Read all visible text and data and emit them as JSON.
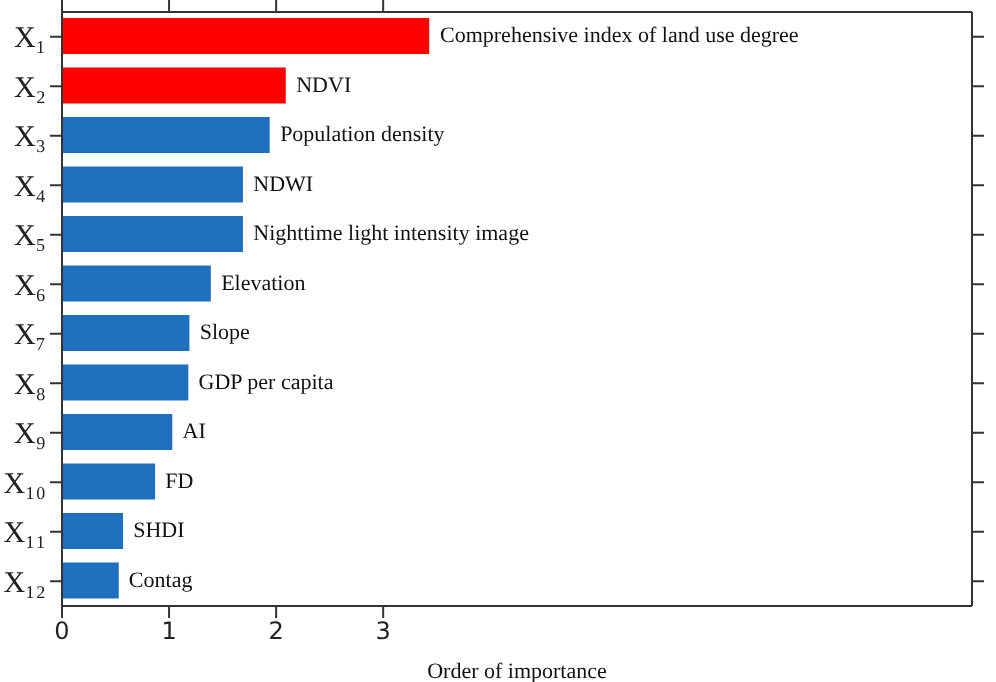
{
  "chart_data": {
    "type": "bar",
    "orientation": "horizontal",
    "xlabel": "Order of importance",
    "categories": [
      "X₁",
      "X₂",
      "X₃",
      "X₄",
      "X₅",
      "X₆",
      "X₇",
      "X₈",
      "X₉",
      "X₁₀",
      "X₁₁",
      "X₁₂"
    ],
    "values": [
      3.43,
      2.09,
      1.94,
      1.69,
      1.69,
      1.39,
      1.19,
      1.18,
      1.03,
      0.87,
      0.57,
      0.53
    ],
    "colors": [
      "#ff0000",
      "#ff0000",
      "#1f6fbf",
      "#1f6fbf",
      "#1f6fbf",
      "#1f6fbf",
      "#1f6fbf",
      "#1f6fbf",
      "#1f6fbf",
      "#1f6fbf",
      "#1f6fbf",
      "#1f6fbf"
    ],
    "xlim": [
      0,
      8.5
    ],
    "xticks": [
      0,
      1,
      2,
      3
    ],
    "grid": false,
    "legend": false,
    "annotations": [
      "Comprehensive index of land use degree",
      "NDVI",
      "Population density",
      "NDWI",
      "Nighttime light intensity image",
      "Elevation",
      "Slope",
      "GDP per capita",
      "AI",
      "FD",
      "SHDI",
      "Contag"
    ]
  }
}
